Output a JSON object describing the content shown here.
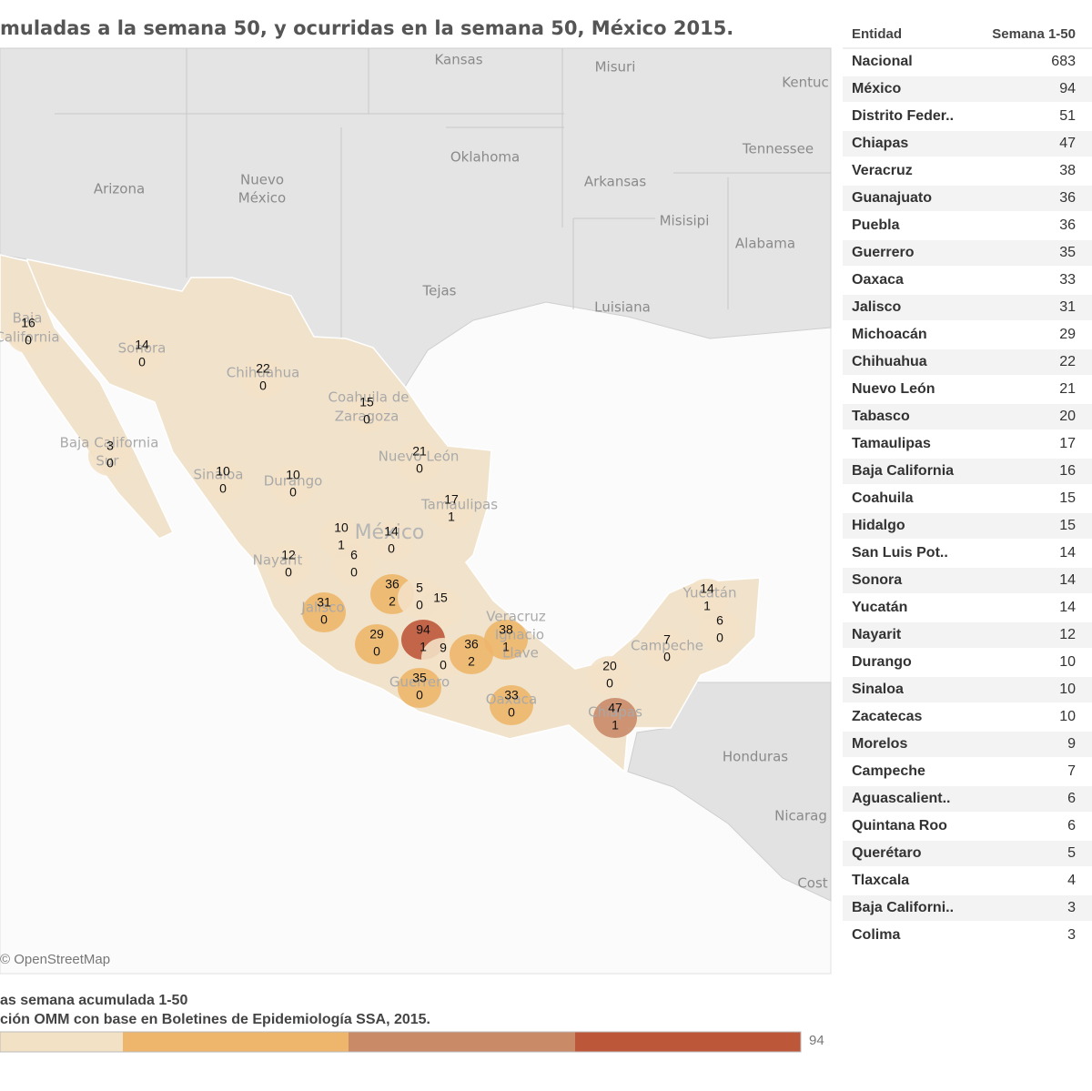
{
  "title": "muladas a la semana 50, y ocurridas en la semana 50, México 2015.",
  "map": {
    "background_labels": [
      "Kansas",
      "Misuri",
      "Kentuc",
      "Oklahoma",
      "Tennessee",
      "Arizona",
      "Nuevo",
      "México",
      "Arkansas",
      "Misisipi",
      "Alabama",
      "Tejas",
      "Luisiana",
      "Honduras",
      "Nicarag",
      "Cost",
      "México"
    ],
    "state_names": [
      "Sonora",
      "Chihuahua",
      "Coahuila de",
      "Zaragoza",
      "Baja California",
      "Sur",
      "Sinaloa",
      "Durango",
      "Nuevo León",
      "Tamaulipas",
      "Nayarit",
      "Jalisco",
      "Guerrero",
      "Oaxaca",
      "Chiapas",
      "Campeche",
      "Yucatán",
      "Veracruz",
      "Ignacio",
      "Llave",
      "Baja",
      "California"
    ],
    "states": [
      {
        "cumulative": 16,
        "week": 0
      },
      {
        "cumulative": 14,
        "week": 0
      },
      {
        "cumulative": 22,
        "week": 0
      },
      {
        "cumulative": 15,
        "week": 0
      },
      {
        "cumulative": 21,
        "week": 0
      },
      {
        "cumulative": 3,
        "week": 0
      },
      {
        "cumulative": 10,
        "week": 0
      },
      {
        "cumulative": 10,
        "week": 0
      },
      {
        "cumulative": 17,
        "week": 1
      },
      {
        "cumulative": 10,
        "week": 1
      },
      {
        "cumulative": 14,
        "week": 0
      },
      {
        "cumulative": 12,
        "week": 0
      },
      {
        "cumulative": 6,
        "week": 0
      },
      {
        "cumulative": 36,
        "week": 2
      },
      {
        "cumulative": 5,
        "week": 0
      },
      {
        "cumulative": 15,
        "week": null
      },
      {
        "cumulative": 31,
        "week": 0
      },
      {
        "cumulative": 29,
        "week": 0
      },
      {
        "cumulative": 94,
        "week": 1
      },
      {
        "cumulative": 9,
        "week": 0
      },
      {
        "cumulative": 36,
        "week": 2
      },
      {
        "cumulative": 38,
        "week": 1
      },
      {
        "cumulative": 35,
        "week": 0
      },
      {
        "cumulative": 33,
        "week": 0
      },
      {
        "cumulative": 20,
        "week": 0
      },
      {
        "cumulative": 47,
        "week": 1
      },
      {
        "cumulative": 7,
        "week": 0
      },
      {
        "cumulative": 14,
        "week": 1
      },
      {
        "cumulative": 6,
        "week": 0
      }
    ],
    "attribution": "© OpenStreetMap"
  },
  "legend": {
    "title": "as semana acumulada 1-50",
    "source": "ción OMM con base en Boletines de Epidemiología SSA, 2015.",
    "max": 94,
    "colors": [
      "#f3e1c6",
      "#edb66c",
      "#c98a68",
      "#bd573a"
    ]
  },
  "table": {
    "header": [
      "Entidad",
      "Semana 1-50"
    ],
    "rows": [
      [
        "Nacional",
        683
      ],
      [
        "México",
        94
      ],
      [
        "Distrito Feder..",
        51
      ],
      [
        "Chiapas",
        47
      ],
      [
        "Veracruz",
        38
      ],
      [
        "Guanajuato",
        36
      ],
      [
        "Puebla",
        36
      ],
      [
        "Guerrero",
        35
      ],
      [
        "Oaxaca",
        33
      ],
      [
        "Jalisco",
        31
      ],
      [
        "Michoacán",
        29
      ],
      [
        "Chihuahua",
        22
      ],
      [
        "Nuevo León",
        21
      ],
      [
        "Tabasco",
        20
      ],
      [
        "Tamaulipas",
        17
      ],
      [
        "Baja California",
        16
      ],
      [
        "Coahuila",
        15
      ],
      [
        "Hidalgo",
        15
      ],
      [
        "San Luis Pot..",
        14
      ],
      [
        "Sonora",
        14
      ],
      [
        "Yucatán",
        14
      ],
      [
        "Nayarit",
        12
      ],
      [
        "Durango",
        10
      ],
      [
        "Sinaloa",
        10
      ],
      [
        "Zacatecas",
        10
      ],
      [
        "Morelos",
        9
      ],
      [
        "Campeche",
        7
      ],
      [
        "Aguascalient..",
        6
      ],
      [
        "Quintana Roo",
        6
      ],
      [
        "Querétaro",
        5
      ],
      [
        "Tlaxcala",
        4
      ],
      [
        "Baja Californi..",
        3
      ],
      [
        "Colima",
        3
      ]
    ]
  }
}
